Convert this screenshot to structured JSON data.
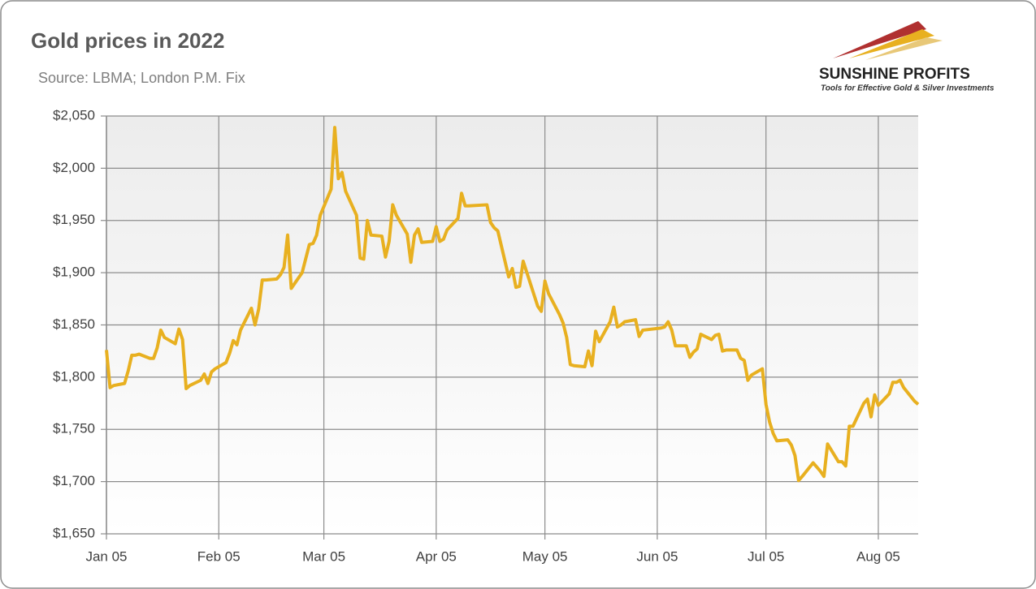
{
  "chart_data": {
    "type": "line",
    "title": "Gold prices in 2022",
    "subtitle": "Source: LBMA; London P.M. Fix",
    "x": [
      "Jan 05",
      "Jan 06",
      "Jan 07",
      "Jan 10",
      "Jan 11",
      "Jan 12",
      "Jan 13",
      "Jan 14",
      "Jan 17",
      "Jan 18",
      "Jan 19",
      "Jan 20",
      "Jan 21",
      "Jan 24",
      "Jan 25",
      "Jan 26",
      "Jan 27",
      "Jan 28",
      "Jan 31",
      "Feb 01",
      "Feb 02",
      "Feb 03",
      "Feb 04",
      "Feb 07",
      "Feb 08",
      "Feb 09",
      "Feb 10",
      "Feb 11",
      "Feb 14",
      "Feb 15",
      "Feb 16",
      "Feb 17",
      "Feb 18",
      "Feb 21",
      "Feb 22",
      "Feb 23",
      "Feb 24",
      "Feb 25",
      "Feb 28",
      "Mar 01",
      "Mar 02",
      "Mar 03",
      "Mar 04",
      "Mar 07",
      "Mar 08",
      "Mar 09",
      "Mar 10",
      "Mar 11",
      "Mar 14",
      "Mar 15",
      "Mar 16",
      "Mar 17",
      "Mar 18",
      "Mar 21",
      "Mar 22",
      "Mar 23",
      "Mar 24",
      "Mar 25",
      "Mar 28",
      "Mar 29",
      "Mar 30",
      "Mar 31",
      "Apr 01",
      "Apr 04",
      "Apr 05",
      "Apr 06",
      "Apr 07",
      "Apr 08",
      "Apr 11",
      "Apr 12",
      "Apr 13",
      "Apr 14",
      "Apr 19",
      "Apr 20",
      "Apr 21",
      "Apr 22",
      "Apr 25",
      "Apr 26",
      "Apr 27",
      "Apr 28",
      "Apr 29",
      "May 03",
      "May 04",
      "May 05",
      "May 06",
      "May 09",
      "May 10",
      "May 11",
      "May 12",
      "May 13",
      "May 16",
      "May 17",
      "May 18",
      "May 19",
      "May 20",
      "May 23",
      "May 24",
      "May 25",
      "May 26",
      "May 27",
      "May 30",
      "May 31",
      "Jun 01",
      "Jun 06",
      "Jun 07",
      "Jun 08",
      "Jun 09",
      "Jun 10",
      "Jun 13",
      "Jun 14",
      "Jun 15",
      "Jun 16",
      "Jun 17",
      "Jun 20",
      "Jun 21",
      "Jun 22",
      "Jun 23",
      "Jun 24",
      "Jun 27",
      "Jun 28",
      "Jun 29",
      "Jun 30",
      "Jul 01",
      "Jul 04",
      "Jul 05",
      "Jul 06",
      "Jul 07",
      "Jul 08",
      "Jul 11",
      "Jul 12",
      "Jul 13",
      "Jul 14",
      "Jul 15",
      "Jul 18",
      "Jul 19",
      "Jul 20",
      "Jul 21",
      "Jul 22",
      "Jul 25",
      "Jul 26",
      "Jul 27",
      "Jul 28",
      "Jul 29",
      "Aug 01",
      "Aug 02",
      "Aug 03",
      "Aug 04",
      "Aug 05",
      "Aug 08",
      "Aug 09",
      "Aug 10",
      "Aug 11",
      "Aug 12",
      "Aug 15",
      "Aug 16"
    ],
    "values": [
      1826,
      1790,
      1792,
      1794,
      1806,
      1821,
      1821,
      1822,
      1818,
      1818,
      1828,
      1845,
      1838,
      1832,
      1846,
      1836,
      1789,
      1792,
      1797,
      1803,
      1794,
      1805,
      1808,
      1814,
      1823,
      1835,
      1831,
      1845,
      1866,
      1850,
      1865,
      1893,
      1893,
      1894,
      1898,
      1905,
      1936,
      1885,
      1900,
      1927,
      1928,
      1936,
      1955,
      1980,
      2039,
      1990,
      1996,
      1978,
      1955,
      1914,
      1913,
      1950,
      1936,
      1935,
      1915,
      1930,
      1965,
      1955,
      1937,
      1910,
      1936,
      1942,
      1929,
      1930,
      1944,
      1930,
      1932,
      1941,
      1952,
      1976,
      1964,
      1964,
      1965,
      1948,
      1943,
      1940,
      1896,
      1904,
      1886,
      1887,
      1911,
      1868,
      1863,
      1892,
      1880,
      1860,
      1852,
      1838,
      1812,
      1811,
      1810,
      1825,
      1811,
      1844,
      1834,
      1853,
      1867,
      1848,
      1850,
      1853,
      1855,
      1839,
      1845,
      1847,
      1848,
      1853,
      1845,
      1830,
      1830,
      1819,
      1824,
      1827,
      1841,
      1836,
      1840,
      1841,
      1825,
      1826,
      1826,
      1818,
      1816,
      1797,
      1802,
      1808,
      1774,
      1757,
      1746,
      1739,
      1740,
      1735,
      1725,
      1701,
      1705,
      1718,
      1714,
      1710,
      1705,
      1736,
      1719,
      1719,
      1715,
      1753,
      1753,
      1775,
      1779,
      1762,
      1783,
      1773,
      1784,
      1795,
      1795,
      1797,
      1790,
      1777,
      1774
    ],
    "color": "#e8b020",
    "xlim": [
      "Jan 05",
      "Aug 16"
    ],
    "xticks": [
      "Jan 05",
      "Feb 05",
      "Mar 05",
      "Apr 05",
      "May 05",
      "Jun 05",
      "Jul 05",
      "Aug 05"
    ],
    "ylim": [
      1650,
      2050
    ],
    "yticks": [
      {
        "value": 1650,
        "label": "$1,650"
      },
      {
        "value": 1700,
        "label": "$1,700"
      },
      {
        "value": 1750,
        "label": "$1,750"
      },
      {
        "value": 1800,
        "label": "$1,800"
      },
      {
        "value": 1850,
        "label": "$1,850"
      },
      {
        "value": 1900,
        "label": "$1,900"
      },
      {
        "value": 1950,
        "label": "$1,950"
      },
      {
        "value": 2000,
        "label": "$2,000"
      },
      {
        "value": 2050,
        "label": "$2,050"
      }
    ],
    "grid": true
  },
  "logo": {
    "name": "SUNSHINE PROFITS",
    "tagline": "Tools for Effective Gold & Silver Investments"
  }
}
